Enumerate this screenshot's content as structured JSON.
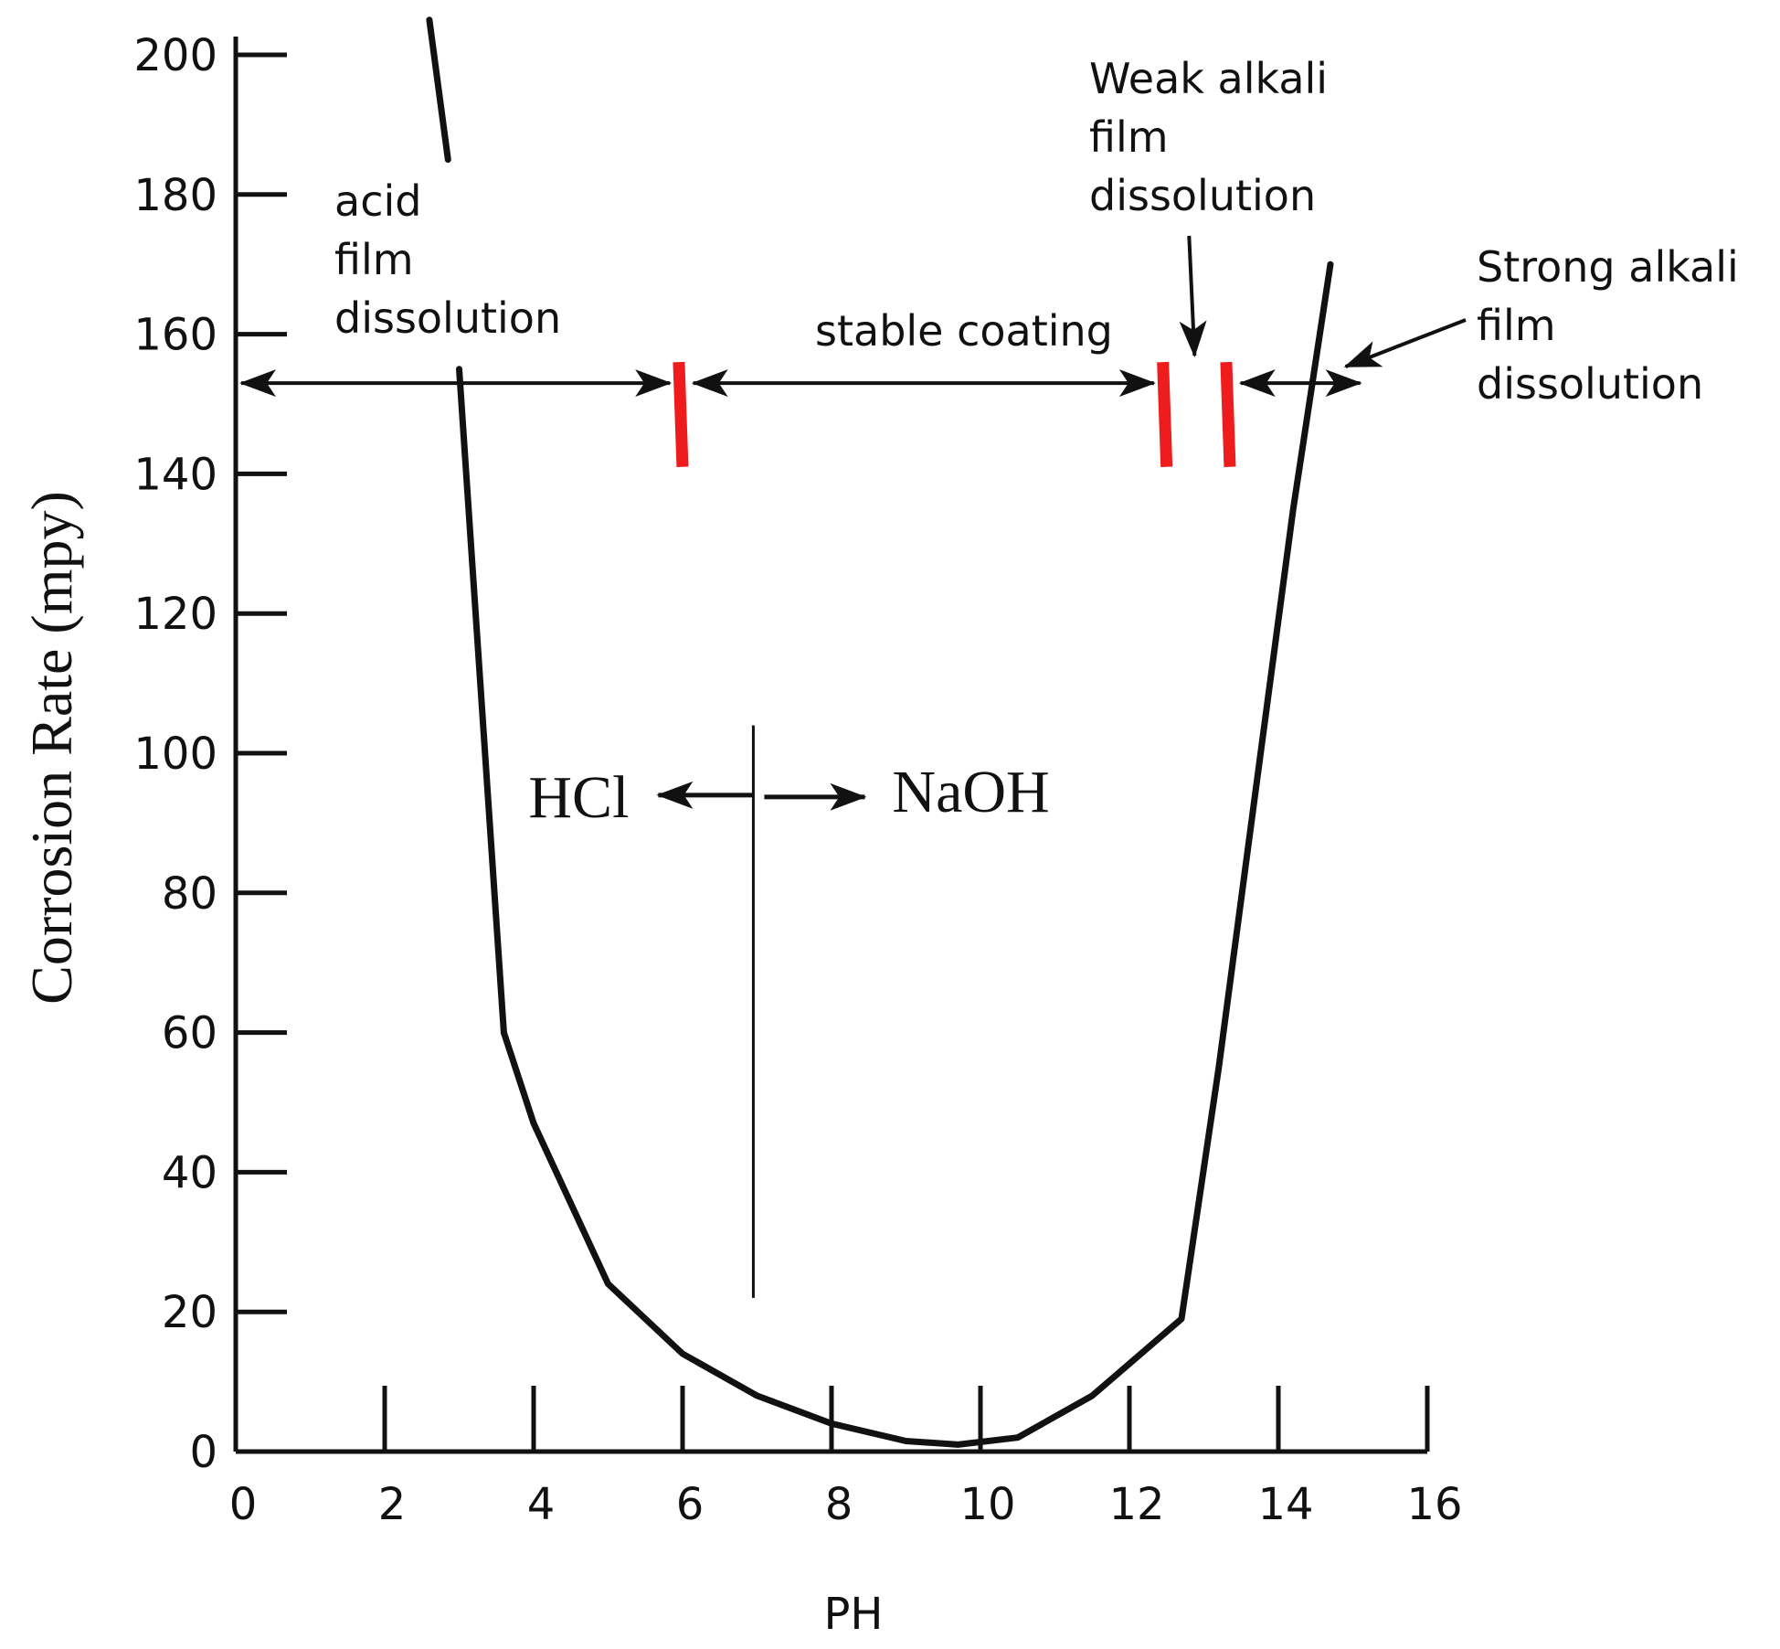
{
  "chart_data": {
    "type": "line",
    "title": "",
    "xlabel": "PH",
    "ylabel": "Corrosion Rate (mpy)",
    "xlim": [
      0,
      16
    ],
    "ylim": [
      0,
      200
    ],
    "x_ticks": [
      "0",
      "2",
      "4",
      "6",
      "8",
      "10",
      "12",
      "14",
      "16"
    ],
    "y_ticks": [
      "0",
      "20",
      "40",
      "60",
      "80",
      "100",
      "120",
      "140",
      "160",
      "180",
      "200"
    ],
    "grid": false,
    "series": [
      {
        "x": [
          3.6,
          4.0,
          5.0,
          6.0,
          7.0,
          8.0,
          9.0,
          9.7,
          10.5,
          11.5,
          12.7,
          13.2,
          13.7,
          14.2,
          14.7
        ],
        "y": [
          60,
          47,
          24,
          14,
          8,
          4,
          1.5,
          1,
          2,
          8,
          19,
          55,
          95,
          135,
          170
        ]
      },
      {
        "x": [
          3.0,
          3.6
        ],
        "y": [
          155,
          60
        ]
      },
      {
        "x": [
          2.6,
          2.85
        ],
        "y": [
          205,
          185
        ]
      }
    ],
    "region_boundaries": {
      "color": "#ee1c1c",
      "x": [
        5.95,
        12.45,
        13.3
      ],
      "y_range": [
        141,
        156
      ]
    },
    "region_arrow_y": 153,
    "regions": {
      "acid": "acid\nfilm\ndissolution",
      "stable": "stable coating",
      "weak_alkali": "Weak alkali\nfilm\ndissolution",
      "strong_alkali": "Strong alkali\nfilm\ndissolution"
    },
    "hcl_naoh_divider": {
      "x": 6.95,
      "y_range": [
        22,
        104
      ],
      "left_label": "HCl",
      "right_label": "NaOH"
    }
  }
}
